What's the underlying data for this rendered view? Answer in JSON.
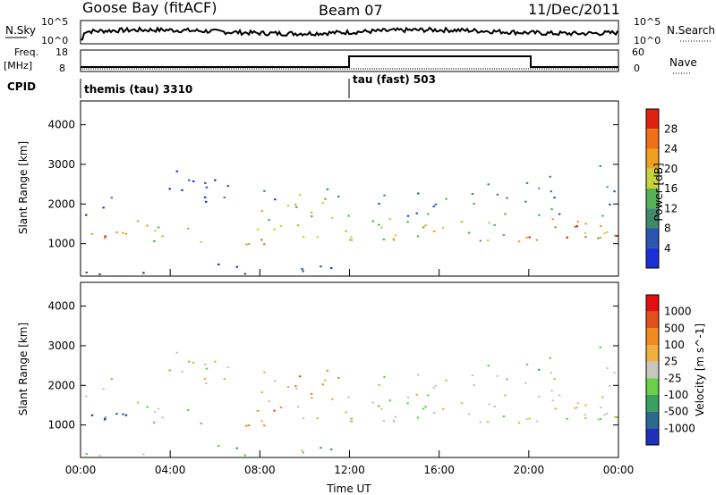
{
  "header": {
    "station": "Goose Bay (fitACF)",
    "beam": "Beam 07",
    "date": "11/Dec/2011"
  },
  "top_panels": {
    "nsky_label": "N.Sky",
    "nsky_ticks": [
      "10^5",
      "10^0"
    ],
    "nsearch_label": "N.Search",
    "nsearch_ticks": [
      "10^5",
      "10^0"
    ],
    "freq_label": "Freq.",
    "freq_unit": "[MHz]",
    "freq_ticks": [
      "18",
      "8"
    ],
    "nave_label": "Nave",
    "nave_ticks": [
      "60",
      "0"
    ],
    "cpid_label": "CPID",
    "cpid_entries": [
      {
        "text": "themis (tau) 3310",
        "start_hour": 0
      },
      {
        "text": "tau (fast) 503",
        "start_hour": 12
      }
    ]
  },
  "chart_data": [
    {
      "type": "heatmap",
      "title": "",
      "quantity": "Power",
      "ylabel": "Slant Range [km]",
      "xlabel": "",
      "x_range_hours": [
        0,
        24
      ],
      "ylim": [
        180,
        4600
      ],
      "y_ticks": [
        1000,
        2000,
        3000,
        4000
      ],
      "colorbar": {
        "label": "Power [dB]",
        "range": [
          0,
          32
        ],
        "ticks": [
          "4",
          "8",
          "12",
          "16",
          "20",
          "24",
          "28"
        ],
        "colors": [
          "#1a2fd6",
          "#2a55b0",
          "#3f8a6a",
          "#58b058",
          "#c8d23a",
          "#f0a020",
          "#f07018",
          "#e02010"
        ]
      }
    },
    {
      "type": "heatmap",
      "title": "",
      "quantity": "Velocity",
      "ylabel": "Slant Range [km]",
      "xlabel": "Time UT",
      "x_range_hours": [
        0,
        24
      ],
      "x_ticks": [
        "00:00",
        "04:00",
        "08:00",
        "12:00",
        "16:00",
        "20:00",
        "00:00"
      ],
      "ylim": [
        180,
        4600
      ],
      "y_ticks": [
        1000,
        2000,
        3000,
        4000
      ],
      "colorbar": {
        "label": "Velocity [m s^-1]",
        "ticks": [
          "1000",
          "500",
          "100",
          "25",
          "-25",
          "-100",
          "-500",
          "-1000"
        ],
        "colors": [
          "#2030b8",
          "#2a6a8a",
          "#3aa060",
          "#6ad048",
          "#c8c8c0",
          "#f0b040",
          "#f08a20",
          "#e05018",
          "#e01010"
        ]
      }
    }
  ]
}
